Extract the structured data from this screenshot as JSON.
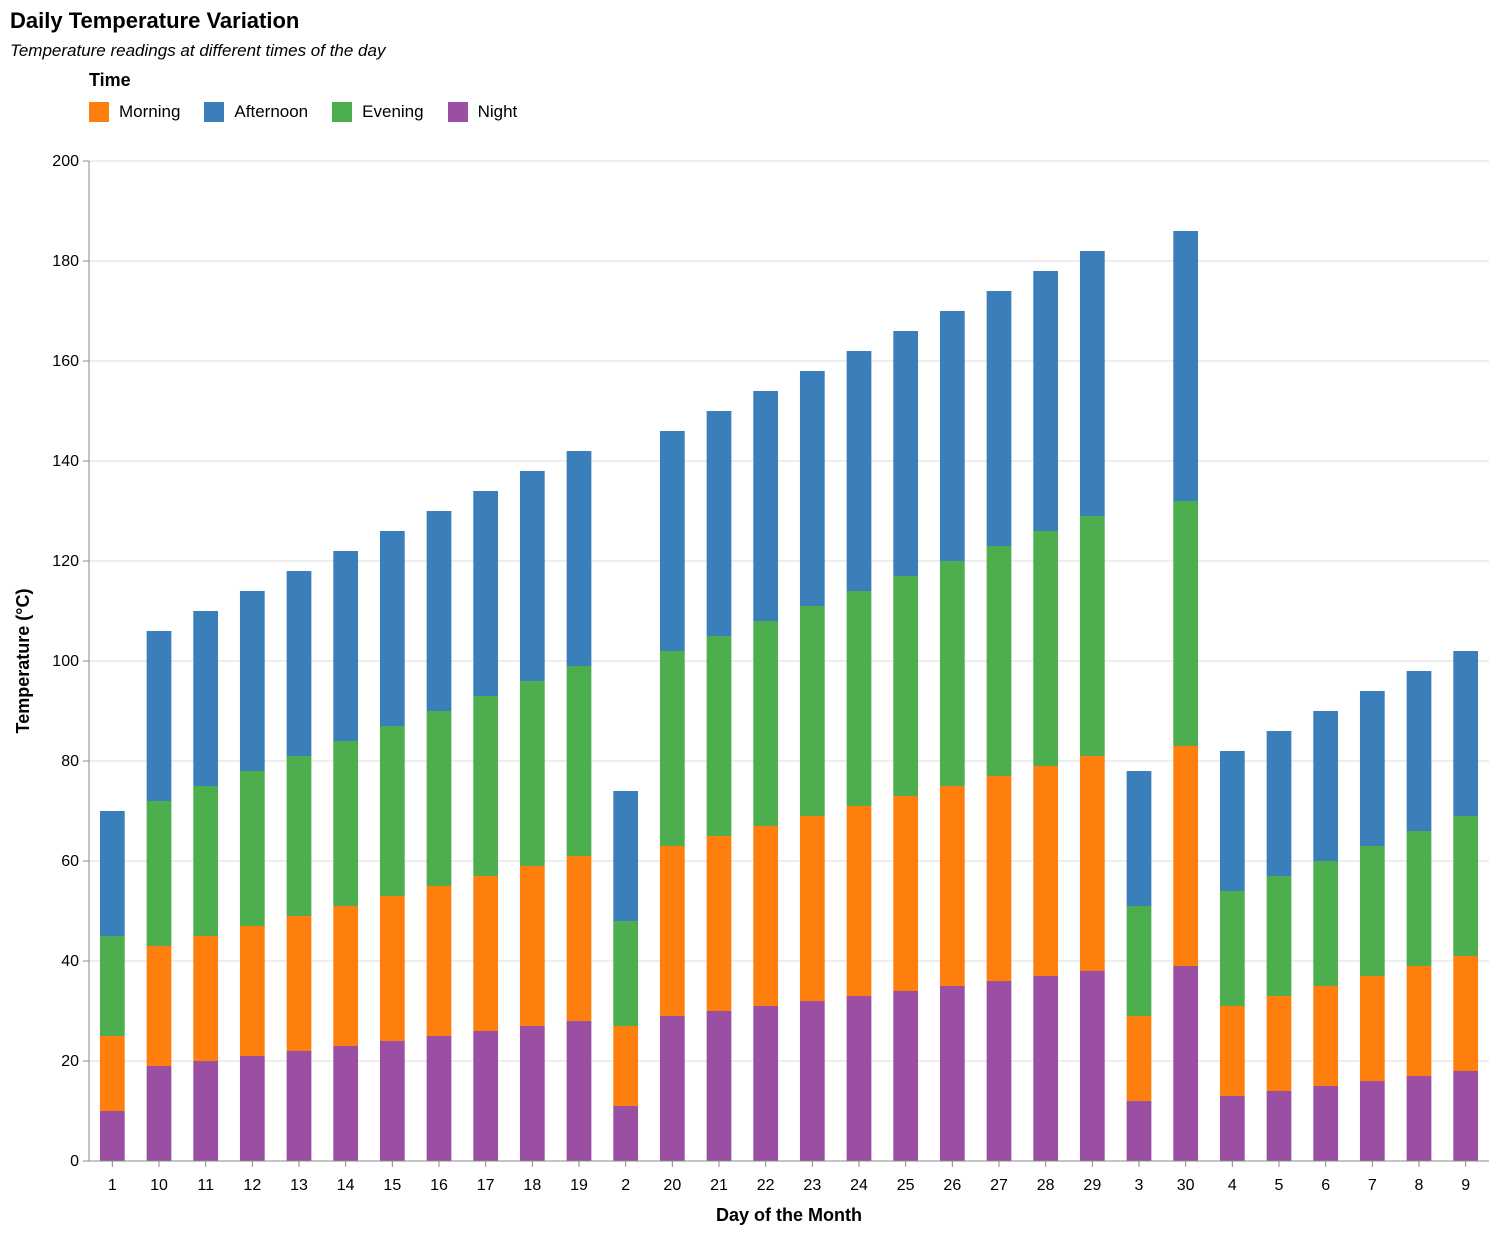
{
  "chart_data": {
    "type": "bar",
    "stacked": true,
    "title": "Daily Temperature Variation",
    "subtitle": "Temperature readings at different times of the day",
    "xlabel": "Day of the Month",
    "ylabel": "Temperature (°C)",
    "ylim": [
      0,
      200
    ],
    "yticks": [
      0,
      20,
      40,
      60,
      80,
      100,
      120,
      140,
      160,
      180,
      200
    ],
    "grid": true,
    "legend": {
      "title": "Time",
      "placement": "top-left"
    },
    "categories": [
      "1",
      "10",
      "11",
      "12",
      "13",
      "14",
      "15",
      "16",
      "17",
      "18",
      "19",
      "2",
      "20",
      "21",
      "22",
      "23",
      "24",
      "25",
      "26",
      "27",
      "28",
      "29",
      "3",
      "30",
      "4",
      "5",
      "6",
      "7",
      "8",
      "9"
    ],
    "series": [
      {
        "name": "Night",
        "color": "#9a4fa3",
        "values": [
          10,
          19,
          20,
          21,
          22,
          23,
          24,
          25,
          26,
          27,
          28,
          11,
          29,
          30,
          31,
          32,
          33,
          34,
          35,
          36,
          37,
          38,
          12,
          39,
          13,
          14,
          15,
          16,
          17,
          18
        ]
      },
      {
        "name": "Morning",
        "color": "#ff7f0e",
        "values": [
          15,
          24,
          25,
          26,
          27,
          28,
          29,
          30,
          31,
          32,
          33,
          16,
          34,
          35,
          36,
          37,
          38,
          39,
          40,
          41,
          42,
          43,
          17,
          44,
          18,
          19,
          20,
          21,
          22,
          23
        ]
      },
      {
        "name": "Evening",
        "color": "#4cae4c",
        "values": [
          20,
          29,
          30,
          31,
          32,
          33,
          34,
          35,
          36,
          37,
          38,
          21,
          39,
          40,
          41,
          42,
          43,
          44,
          45,
          46,
          47,
          48,
          22,
          49,
          23,
          24,
          25,
          26,
          27,
          28
        ]
      },
      {
        "name": "Afternoon",
        "color": "#3a7fb9",
        "values": [
          25,
          34,
          35,
          36,
          37,
          38,
          39,
          40,
          41,
          42,
          43,
          26,
          44,
          45,
          46,
          47,
          48,
          49,
          50,
          51,
          52,
          53,
          27,
          54,
          28,
          29,
          30,
          31,
          32,
          33
        ]
      }
    ],
    "legend_order": [
      "Morning",
      "Afternoon",
      "Evening",
      "Night"
    ]
  }
}
